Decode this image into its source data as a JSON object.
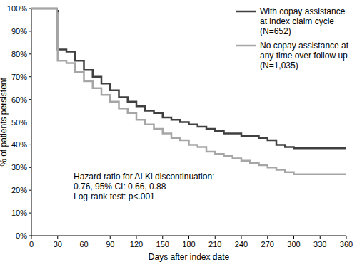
{
  "chart_data": {
    "type": "line",
    "line_style": "step",
    "x_label": "Days after index date",
    "y_label": "% of patients persistent",
    "annotations": [
      "Hazard ratio for ALKi discontinuation:",
      "0.76, 95% CI: 0.66, 0.88",
      "Log-rank test: p<.001"
    ],
    "x": [
      0,
      25,
      29,
      30,
      40,
      50,
      60,
      70,
      80,
      90,
      100,
      110,
      120,
      130,
      140,
      150,
      160,
      170,
      180,
      190,
      200,
      210,
      220,
      230,
      240,
      250,
      260,
      270,
      280,
      290,
      300,
      360
    ],
    "series": [
      {
        "name": "With copay assistance at index claim cycle (N=652)",
        "color": "#404040",
        "values": [
          100,
          100,
          99,
          82,
          81,
          77,
          73,
          70,
          67,
          64,
          61,
          59,
          57,
          55,
          54,
          52,
          51,
          50,
          49,
          48,
          47,
          46,
          45,
          45,
          44,
          44,
          43,
          42,
          40,
          39,
          38.5,
          38.5
        ]
      },
      {
        "name": "No copay assistance at any time over follow up (N=1,035)",
        "color": "#a6a6a6",
        "values": [
          100,
          100,
          98,
          77,
          76,
          72,
          68,
          65,
          62,
          59,
          56,
          54,
          51,
          49,
          47,
          45,
          43,
          42,
          40,
          39,
          37,
          36,
          35,
          34,
          33,
          32,
          31,
          30,
          29,
          28,
          27,
          27
        ]
      }
    ],
    "xlim": [
      0,
      360
    ],
    "xticks": [
      0,
      30,
      60,
      90,
      120,
      150,
      180,
      210,
      240,
      270,
      300,
      330,
      360
    ],
    "ylim": [
      0,
      100
    ],
    "yticks": [
      {
        "value": 0,
        "label": "0%"
      },
      {
        "value": 10,
        "label": "10%"
      },
      {
        "value": 20,
        "label": "20%"
      },
      {
        "value": 30,
        "label": "30%"
      },
      {
        "value": 40,
        "label": "40%"
      },
      {
        "value": 50,
        "label": "50%"
      },
      {
        "value": 60,
        "label": "60%"
      },
      {
        "value": 70,
        "label": "70%"
      },
      {
        "value": 80,
        "label": "80%"
      },
      {
        "value": 90,
        "label": "90%"
      },
      {
        "value": 100,
        "label": "100%"
      }
    ],
    "grid": false,
    "legend": "upper right"
  }
}
